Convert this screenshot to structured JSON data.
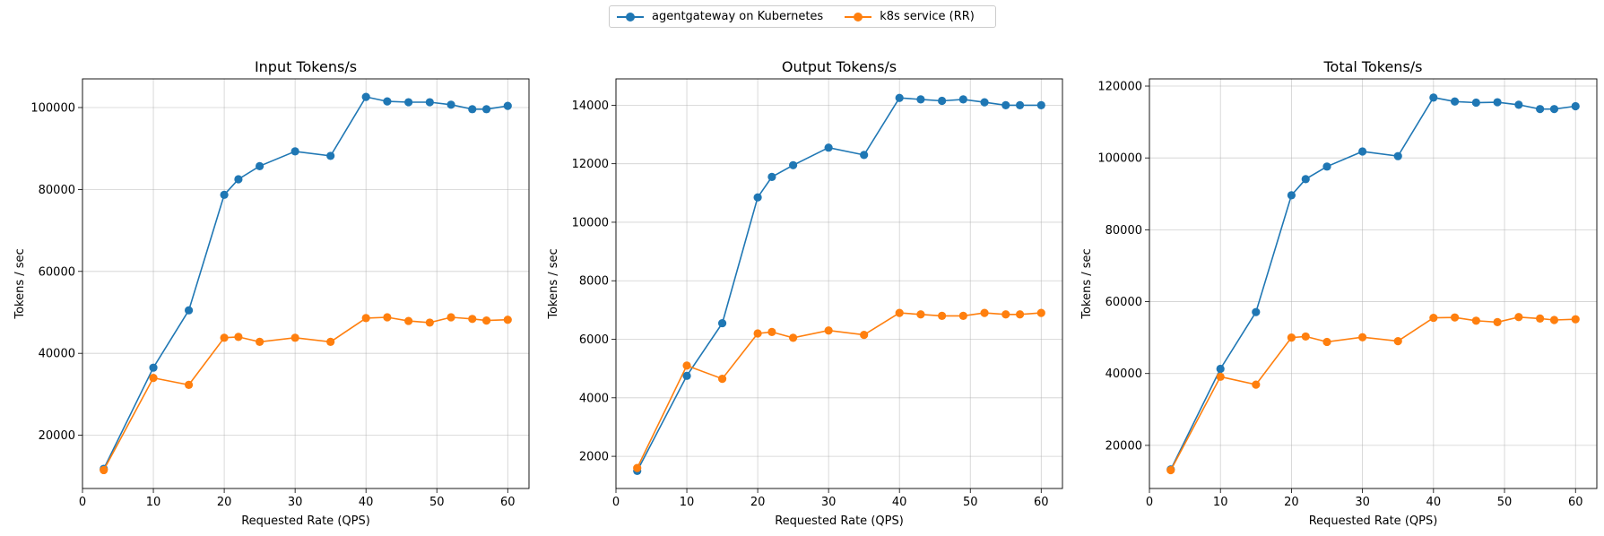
{
  "legend": {
    "placement": "top-center",
    "items": [
      {
        "label": "agentgateway on Kubernetes",
        "color": "#1f77b4"
      },
      {
        "label": "k8s service (RR)",
        "color": "#ff7f0e"
      }
    ]
  },
  "chart_data": [
    {
      "type": "line",
      "title": "Input Tokens/s",
      "xlabel": "Requested Rate (QPS)",
      "ylabel": "Tokens / sec",
      "grid": true,
      "xlim": [
        0,
        63
      ],
      "ylim": [
        7000,
        107000
      ],
      "xticks": [
        0,
        10,
        20,
        30,
        40,
        50,
        60
      ],
      "yticks": [
        20000,
        40000,
        60000,
        80000,
        100000
      ],
      "x": [
        3,
        10,
        15,
        20,
        22,
        25,
        30,
        35,
        40,
        43,
        46,
        49,
        52,
        55,
        57,
        60
      ],
      "series": [
        {
          "name": "agentgateway on Kubernetes",
          "color": "#1f77b4",
          "values": [
            11800,
            36500,
            50500,
            78700,
            82500,
            85700,
            89300,
            88200,
            102600,
            101500,
            101300,
            101300,
            100700,
            99600,
            99600,
            100400
          ]
        },
        {
          "name": "k8s service (RR)",
          "color": "#ff7f0e",
          "values": [
            11500,
            34000,
            32300,
            43800,
            44000,
            42800,
            43800,
            42800,
            48600,
            48800,
            47900,
            47500,
            48800,
            48400,
            48000,
            48200
          ]
        }
      ]
    },
    {
      "type": "line",
      "title": "Output Tokens/s",
      "xlabel": "Requested Rate (QPS)",
      "ylabel": "Tokens / sec",
      "grid": true,
      "xlim": [
        0,
        63
      ],
      "ylim": [
        900,
        14900
      ],
      "xticks": [
        0,
        10,
        20,
        30,
        40,
        50,
        60
      ],
      "yticks": [
        2000,
        4000,
        6000,
        8000,
        10000,
        12000,
        14000
      ],
      "x": [
        3,
        10,
        15,
        20,
        22,
        25,
        30,
        35,
        40,
        43,
        46,
        49,
        52,
        55,
        57,
        60
      ],
      "series": [
        {
          "name": "agentgateway on Kubernetes",
          "color": "#1f77b4",
          "values": [
            1500,
            4750,
            6550,
            10850,
            11550,
            11950,
            12550,
            12300,
            14250,
            14200,
            14150,
            14200,
            14100,
            14000,
            14000,
            14000
          ]
        },
        {
          "name": "k8s service (RR)",
          "color": "#ff7f0e",
          "values": [
            1600,
            5100,
            4650,
            6200,
            6250,
            6050,
            6300,
            6150,
            6900,
            6850,
            6800,
            6800,
            6900,
            6850,
            6850,
            6900
          ]
        }
      ]
    },
    {
      "type": "line",
      "title": "Total Tokens/s",
      "xlabel": "Requested Rate (QPS)",
      "ylabel": "Tokens / sec",
      "grid": true,
      "xlim": [
        0,
        63
      ],
      "ylim": [
        8000,
        122000
      ],
      "xticks": [
        0,
        10,
        20,
        30,
        40,
        50,
        60
      ],
      "yticks": [
        20000,
        40000,
        60000,
        80000,
        100000,
        120000
      ],
      "x": [
        3,
        10,
        15,
        20,
        22,
        25,
        30,
        35,
        40,
        43,
        46,
        49,
        52,
        55,
        57,
        60
      ],
      "series": [
        {
          "name": "agentgateway on Kubernetes",
          "color": "#1f77b4",
          "values": [
            13300,
            41300,
            57100,
            89600,
            94100,
            97600,
            101800,
            100500,
            116800,
            115700,
            115400,
            115500,
            114800,
            113600,
            113600,
            114400
          ]
        },
        {
          "name": "k8s service (RR)",
          "color": "#ff7f0e",
          "values": [
            13100,
            39100,
            36900,
            50000,
            50300,
            48800,
            50100,
            49000,
            55500,
            55600,
            54700,
            54300,
            55700,
            55300,
            54900,
            55100
          ]
        }
      ]
    }
  ]
}
